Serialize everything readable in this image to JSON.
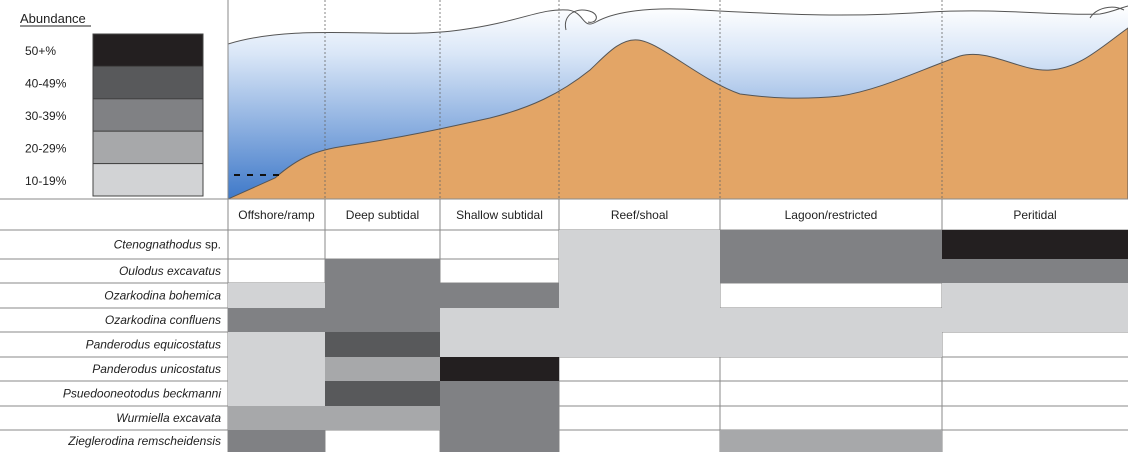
{
  "legend": {
    "title": "Abundance",
    "levels": [
      {
        "label": "50+%",
        "level": 5
      },
      {
        "label": "40-49%",
        "level": 4
      },
      {
        "label": "30-39%",
        "level": 3
      },
      {
        "label": "20-29%",
        "level": 2
      },
      {
        "label": "10-19%",
        "level": 1
      }
    ]
  },
  "level_colors": {
    "0": "#ffffff",
    "1": "#d2d3d5",
    "2": "#a7a8aa",
    "3": "#808184",
    "4": "#58595b",
    "5": "#231f20"
  },
  "colors": {
    "sediment": "#e3a566",
    "water_deep": "#3f79c9",
    "water_light": "#ffffff",
    "outline": "#555555",
    "grid": "#8a8a8a"
  },
  "environments": [
    "Offshore/ramp",
    "Deep subtidal",
    "Shallow subtidal",
    "Reef/shoal",
    "Lagoon/restricted",
    "Peritidal"
  ],
  "species": [
    {
      "name": "Ctenognathodus",
      "suffix": " sp.",
      "levels": [
        0,
        0,
        0,
        1,
        3,
        5
      ]
    },
    {
      "name": "Oulodus excavatus",
      "suffix": "",
      "levels": [
        0,
        3,
        0,
        1,
        3,
        3
      ]
    },
    {
      "name": "Ozarkodina bohemica",
      "suffix": "",
      "levels": [
        1,
        3,
        3,
        1,
        0,
        1
      ]
    },
    {
      "name": "Ozarkodina confluens",
      "suffix": "",
      "levels": [
        3,
        3,
        1,
        1,
        1,
        1
      ]
    },
    {
      "name": "Panderodus equicostatus",
      "suffix": "",
      "levels": [
        1,
        4,
        1,
        1,
        1,
        0
      ]
    },
    {
      "name": "Panderodus unicostatus",
      "suffix": "",
      "levels": [
        1,
        2,
        5,
        0,
        0,
        0
      ]
    },
    {
      "name": "Psuedooneotodus beckmanni",
      "suffix": "",
      "levels": [
        1,
        4,
        3,
        0,
        0,
        0
      ]
    },
    {
      "name": "Wurmiella excavata",
      "suffix": "",
      "levels": [
        2,
        2,
        3,
        0,
        0,
        0
      ]
    },
    {
      "name": "Zieglerodina remscheidensis",
      "suffix": "",
      "levels": [
        3,
        0,
        3,
        0,
        2,
        0
      ]
    }
  ]
}
